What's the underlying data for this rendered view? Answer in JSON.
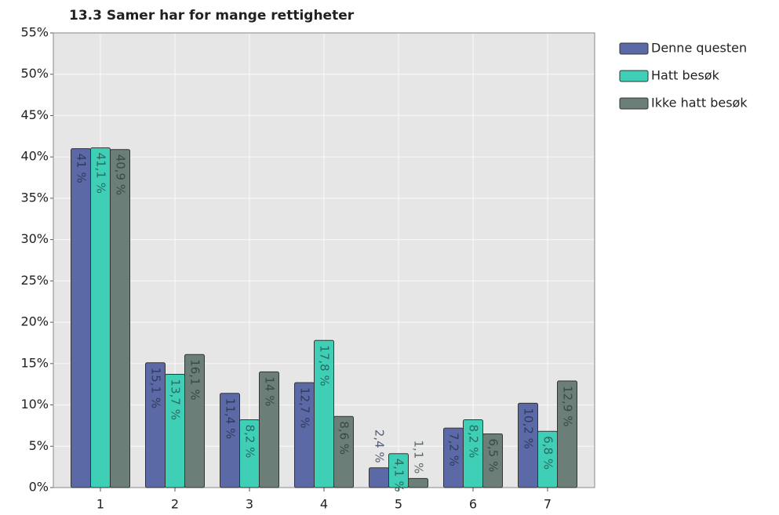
{
  "chart_data": {
    "type": "bar",
    "title": "13.3 Samer har for mange rettigheter",
    "categories": [
      "1",
      "2",
      "3",
      "4",
      "5",
      "6",
      "7"
    ],
    "series": [
      {
        "name": "Denne questen",
        "color": "#5b6aa6",
        "values": [
          41,
          15.1,
          11.4,
          12.7,
          2.4,
          7.2,
          10.2
        ],
        "value_labels": [
          "41 %",
          "15,1 %",
          "11,4 %",
          "12,7 %",
          "2,4 %",
          "7,2 %",
          "10,2 %"
        ]
      },
      {
        "name": "Hatt besøk",
        "color": "#3ecfb6",
        "values": [
          41.1,
          13.7,
          8.2,
          17.8,
          4.1,
          8.2,
          6.8
        ],
        "value_labels": [
          "41,1 %",
          "13,7 %",
          "8,2 %",
          "17,8 %",
          "4,1 %",
          "8,2 %",
          "6,8 %"
        ]
      },
      {
        "name": "Ikke hatt besøk",
        "color": "#6b7e77",
        "values": [
          40.9,
          16.1,
          14,
          8.6,
          1.1,
          6.5,
          12.9
        ],
        "value_labels": [
          "40,9 %",
          "16,1 %",
          "14 %",
          "8,6 %",
          "1,1 %",
          "6,5 %",
          "12,9 %"
        ]
      }
    ],
    "ylim": [
      0,
      55
    ],
    "yticks": [
      {
        "value": 0,
        "label": "0%"
      },
      {
        "value": 5,
        "label": "5%"
      },
      {
        "value": 10,
        "label": "10%"
      },
      {
        "value": 15,
        "label": "15%"
      },
      {
        "value": 20,
        "label": "20%"
      },
      {
        "value": 25,
        "label": "25%"
      },
      {
        "value": 30,
        "label": "30%"
      },
      {
        "value": 35,
        "label": "35%"
      },
      {
        "value": 40,
        "label": "40%"
      },
      {
        "value": 45,
        "label": "45%"
      },
      {
        "value": 50,
        "label": "50%"
      },
      {
        "value": 55,
        "label": "55%"
      }
    ],
    "grid": true,
    "legend": "top-right"
  }
}
